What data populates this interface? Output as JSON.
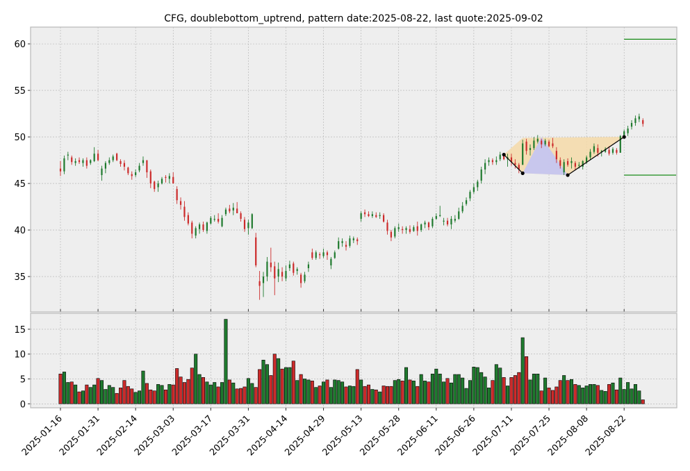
{
  "chart_data": {
    "type": "candlestick",
    "title": "CFG, doublebottom_uptrend, pattern date:2025-08-22, last quote:2025-09-02",
    "price_axis": {
      "ylim": [
        31.2,
        61.8
      ],
      "ticks": [
        35,
        40,
        45,
        50,
        55,
        60
      ]
    },
    "volume_axis": {
      "ylim": [
        -0.8,
        18.2
      ],
      "ticks": [
        0,
        5,
        10,
        15
      ]
    },
    "x_tick_labels": [
      "2025-01-16",
      "2025-01-31",
      "2025-02-14",
      "2025-03-03",
      "2025-03-17",
      "2025-03-31",
      "2025-04-14",
      "2025-04-29",
      "2025-05-13",
      "2025-05-28",
      "2025-06-11",
      "2025-06-26",
      "2025-07-11",
      "2025-07-25",
      "2025-08-08",
      "2025-08-22"
    ],
    "x_tick_index": [
      0,
      10,
      20,
      30,
      40,
      50,
      60,
      70,
      80,
      90,
      100,
      110,
      120,
      130,
      140,
      150
    ],
    "grid": true,
    "levels": [
      60.5,
      45.9
    ],
    "pattern_points": [
      {
        "i": 118,
        "price": 48.1
      },
      {
        "i": 123,
        "price": 46.1
      },
      {
        "i": 135,
        "price": 45.9
      },
      {
        "i": 150,
        "price": 50.0
      }
    ],
    "candles": [
      [
        46.6,
        47.4,
        45.8,
        46.3,
        6.0
      ],
      [
        46.3,
        48.0,
        46.0,
        47.7,
        6.4
      ],
      [
        48.0,
        48.4,
        47.5,
        48.1,
        4.3
      ],
      [
        47.8,
        48.0,
        47.0,
        47.3,
        4.4
      ],
      [
        47.2,
        47.7,
        46.9,
        47.4,
        3.8
      ],
      [
        47.5,
        47.8,
        47.1,
        47.3,
        2.4
      ],
      [
        47.2,
        47.7,
        46.8,
        47.5,
        2.6
      ],
      [
        47.5,
        47.8,
        46.6,
        46.9,
        3.8
      ],
      [
        47.2,
        47.6,
        47.0,
        47.5,
        3.3
      ],
      [
        47.4,
        48.9,
        47.3,
        48.2,
        3.8
      ],
      [
        48.2,
        48.6,
        47.4,
        47.5,
        5.1
      ],
      [
        45.9,
        46.9,
        45.3,
        46.6,
        4.7
      ],
      [
        46.6,
        47.4,
        46.1,
        47.2,
        2.9
      ],
      [
        47.2,
        47.8,
        47.0,
        47.5,
        3.7
      ],
      [
        47.5,
        48.1,
        47.3,
        47.9,
        3.3
      ],
      [
        48.2,
        48.3,
        47.4,
        47.5,
        2.1
      ],
      [
        47.4,
        47.6,
        46.8,
        47.1,
        3.2
      ],
      [
        47.2,
        47.5,
        46.4,
        46.8,
        4.7
      ],
      [
        46.7,
        46.8,
        45.9,
        46.1,
        3.5
      ],
      [
        46.0,
        46.3,
        45.4,
        45.8,
        3.0
      ],
      [
        45.9,
        46.5,
        45.7,
        46.2,
        2.3
      ],
      [
        46.4,
        47.2,
        46.2,
        46.9,
        2.6
      ],
      [
        47.2,
        47.9,
        46.9,
        47.5,
        6.6
      ],
      [
        47.5,
        47.5,
        45.6,
        46.2,
        4.1
      ],
      [
        46.3,
        46.5,
        44.5,
        45.0,
        2.8
      ],
      [
        45.2,
        45.3,
        44.1,
        44.4,
        2.6
      ],
      [
        44.6,
        45.3,
        44.1,
        45.0,
        3.9
      ],
      [
        45.0,
        45.7,
        44.9,
        45.5,
        3.7
      ],
      [
        45.7,
        45.9,
        45.1,
        45.6,
        2.8
      ],
      [
        45.5,
        46.1,
        45.0,
        45.8,
        3.9
      ],
      [
        45.7,
        46.2,
        45.0,
        45.0,
        3.8
      ],
      [
        44.4,
        44.7,
        42.8,
        43.2,
        7.1
      ],
      [
        43.1,
        43.5,
        42.2,
        42.7,
        5.4
      ],
      [
        42.5,
        43.1,
        41.0,
        41.4,
        4.3
      ],
      [
        41.6,
        41.9,
        40.5,
        40.7,
        4.9
      ],
      [
        40.8,
        41.0,
        39.1,
        39.6,
        7.2
      ],
      [
        39.4,
        40.4,
        39.1,
        40.2,
        10.0
      ],
      [
        40.1,
        40.8,
        39.6,
        40.6,
        5.9
      ],
      [
        40.6,
        40.9,
        39.8,
        40.0,
        5.3
      ],
      [
        39.9,
        40.9,
        39.6,
        40.8,
        4.4
      ],
      [
        40.7,
        41.5,
        40.6,
        41.3,
        3.8
      ],
      [
        41.1,
        41.6,
        40.9,
        41.2,
        4.3
      ],
      [
        41.2,
        41.8,
        40.7,
        40.9,
        3.4
      ],
      [
        40.4,
        41.6,
        40.3,
        41.3,
        4.3
      ],
      [
        41.7,
        42.4,
        41.5,
        42.2,
        17.0
      ],
      [
        42.3,
        42.7,
        41.8,
        42.0,
        4.8
      ],
      [
        42.1,
        42.9,
        41.6,
        42.4,
        4.2
      ],
      [
        42.3,
        43.0,
        41.8,
        41.8,
        3.0
      ],
      [
        41.8,
        42.0,
        40.9,
        41.2,
        3.1
      ],
      [
        41.1,
        41.4,
        39.8,
        40.1,
        3.4
      ],
      [
        40.2,
        41.1,
        39.5,
        40.8,
        5.1
      ],
      [
        40.2,
        41.8,
        40.1,
        41.7,
        4.1
      ],
      [
        39.2,
        39.7,
        36.0,
        36.2,
        3.3
      ],
      [
        34.5,
        35.6,
        32.5,
        34.0,
        6.9
      ],
      [
        34.3,
        35.5,
        32.8,
        35.0,
        8.8
      ],
      [
        35.0,
        37.1,
        34.5,
        36.6,
        7.9
      ],
      [
        36.5,
        38.1,
        35.5,
        36.0,
        5.7
      ],
      [
        36.1,
        36.6,
        33.0,
        34.8,
        10.0
      ],
      [
        35.0,
        36.5,
        34.4,
        35.8,
        9.1
      ],
      [
        35.5,
        36.0,
        34.5,
        35.0,
        7.0
      ],
      [
        34.8,
        36.2,
        34.5,
        35.6,
        7.3
      ],
      [
        35.9,
        36.7,
        35.6,
        36.3,
        7.3
      ],
      [
        36.4,
        36.6,
        35.1,
        35.4,
        8.6
      ],
      [
        35.6,
        36.0,
        35.2,
        35.8,
        4.7
      ],
      [
        35.2,
        35.4,
        33.8,
        34.3,
        5.9
      ],
      [
        34.5,
        35.5,
        34.3,
        35.2,
        5.0
      ],
      [
        35.9,
        36.6,
        35.5,
        36.3,
        4.8
      ],
      [
        37.6,
        38.0,
        36.8,
        37.0,
        4.6
      ],
      [
        37.0,
        37.8,
        36.8,
        37.6,
        3.3
      ],
      [
        37.4,
        37.6,
        36.9,
        37.3,
        3.6
      ],
      [
        37.2,
        38.0,
        37.0,
        37.6,
        4.4
      ],
      [
        37.6,
        37.8,
        36.8,
        37.3,
        4.8
      ],
      [
        36.2,
        37.1,
        35.8,
        36.9,
        3.3
      ],
      [
        37.0,
        37.8,
        36.9,
        37.6,
        4.8
      ],
      [
        38.0,
        39.2,
        37.9,
        38.8,
        4.7
      ],
      [
        38.6,
        39.1,
        38.2,
        38.8,
        4.4
      ],
      [
        38.4,
        38.8,
        37.8,
        38.2,
        3.4
      ],
      [
        38.3,
        39.4,
        38.1,
        39.1,
        3.6
      ],
      [
        38.9,
        39.3,
        38.6,
        39.1,
        3.5
      ],
      [
        39.0,
        39.2,
        38.4,
        38.8,
        6.9
      ],
      [
        41.2,
        42.0,
        40.9,
        41.8,
        4.8
      ],
      [
        41.9,
        42.2,
        41.4,
        41.7,
        3.5
      ],
      [
        41.7,
        42.0,
        41.4,
        41.5,
        3.8
      ],
      [
        41.5,
        42.0,
        41.3,
        41.7,
        2.9
      ],
      [
        41.6,
        41.9,
        41.3,
        41.4,
        2.8
      ],
      [
        41.5,
        41.9,
        41.2,
        41.6,
        2.4
      ],
      [
        41.6,
        41.8,
        40.8,
        40.9,
        3.6
      ],
      [
        40.8,
        41.1,
        39.5,
        39.9,
        3.5
      ],
      [
        39.8,
        40.0,
        38.8,
        39.2,
        3.5
      ],
      [
        39.3,
        40.4,
        39.1,
        40.2,
        4.7
      ],
      [
        40.1,
        40.7,
        39.8,
        40.3,
        4.9
      ],
      [
        40.1,
        40.4,
        39.6,
        40.0,
        4.6
      ],
      [
        40.0,
        40.4,
        39.6,
        40.2,
        7.3
      ],
      [
        40.1,
        40.5,
        39.6,
        39.8,
        4.8
      ],
      [
        39.9,
        40.5,
        39.8,
        40.3,
        4.6
      ],
      [
        40.4,
        40.9,
        39.4,
        39.9,
        3.5
      ],
      [
        40.0,
        40.7,
        39.8,
        40.6,
        5.9
      ],
      [
        40.6,
        41.0,
        40.2,
        40.8,
        4.6
      ],
      [
        40.8,
        40.9,
        40.0,
        40.3,
        4.4
      ],
      [
        40.4,
        41.4,
        40.2,
        41.2,
        6.0
      ],
      [
        41.2,
        41.8,
        41.1,
        41.5,
        7.0
      ],
      [
        41.5,
        42.6,
        41.4,
        41.6,
        6.0
      ],
      [
        40.9,
        41.3,
        40.5,
        41.0,
        4.4
      ],
      [
        41.0,
        41.3,
        40.4,
        40.6,
        5.1
      ],
      [
        40.6,
        41.5,
        40.1,
        41.2,
        4.2
      ],
      [
        41.0,
        41.6,
        40.8,
        41.2,
        5.9
      ],
      [
        41.2,
        42.4,
        41.1,
        42.0,
        5.9
      ],
      [
        42.0,
        43.0,
        41.8,
        42.6,
        5.2
      ],
      [
        42.8,
        43.5,
        42.6,
        43.2,
        3.1
      ],
      [
        43.4,
        44.3,
        43.1,
        44.1,
        4.7
      ],
      [
        44.1,
        45.0,
        43.9,
        44.6,
        7.4
      ],
      [
        44.6,
        45.4,
        44.2,
        45.2,
        7.3
      ],
      [
        45.3,
        46.8,
        45.0,
        46.5,
        6.3
      ],
      [
        46.5,
        47.6,
        46.0,
        47.2,
        5.4
      ],
      [
        47.3,
        47.8,
        46.9,
        47.5,
        3.2
      ],
      [
        47.5,
        47.7,
        47.0,
        47.3,
        4.7
      ],
      [
        47.3,
        47.9,
        47.0,
        47.5,
        7.9
      ],
      [
        47.6,
        48.4,
        47.4,
        48.1,
        7.2
      ],
      [
        48.0,
        48.1,
        47.5,
        47.6,
        5.3
      ],
      [
        47.6,
        48.2,
        46.8,
        47.8,
        3.6
      ],
      [
        47.8,
        48.2,
        46.9,
        47.3,
        5.3
      ],
      [
        47.2,
        47.6,
        46.6,
        47.0,
        5.7
      ],
      [
        47.0,
        47.2,
        46.1,
        46.5,
        6.3
      ],
      [
        47.0,
        49.7,
        47.0,
        49.3,
        13.3
      ],
      [
        49.5,
        49.8,
        48.1,
        48.5,
        9.5
      ],
      [
        48.6,
        49.2,
        48.0,
        48.8,
        4.8
      ],
      [
        48.8,
        50.0,
        48.6,
        49.6,
        6.0
      ],
      [
        49.5,
        50.2,
        49.3,
        49.8,
        6.0
      ],
      [
        49.6,
        49.8,
        48.8,
        49.2,
        2.6
      ],
      [
        49.2,
        49.8,
        49.0,
        49.6,
        5.2
      ],
      [
        49.5,
        49.7,
        48.9,
        49.0,
        3.2
      ],
      [
        49.3,
        49.9,
        48.8,
        49.0,
        2.7
      ],
      [
        48.5,
        48.9,
        47.2,
        47.6,
        3.4
      ],
      [
        47.5,
        47.8,
        46.6,
        46.9,
        4.7
      ],
      [
        46.2,
        47.6,
        45.9,
        47.3,
        5.7
      ],
      [
        47.4,
        47.7,
        46.8,
        47.0,
        4.7
      ],
      [
        47.2,
        47.8,
        46.6,
        47.4,
        4.9
      ],
      [
        47.2,
        47.4,
        46.4,
        46.8,
        3.9
      ],
      [
        46.9,
        47.3,
        46.6,
        47.0,
        3.7
      ],
      [
        46.8,
        47.5,
        46.5,
        47.4,
        3.2
      ],
      [
        47.3,
        48.0,
        47.1,
        47.8,
        3.6
      ],
      [
        47.8,
        48.7,
        47.5,
        48.4,
        3.9
      ],
      [
        48.4,
        49.3,
        48.2,
        49.0,
        3.9
      ],
      [
        48.8,
        49.2,
        47.9,
        48.3,
        3.7
      ],
      [
        48.4,
        48.6,
        47.9,
        48.5,
        2.7
      ],
      [
        48.4,
        48.9,
        48.3,
        48.7,
        2.5
      ],
      [
        48.6,
        49.0,
        48.0,
        48.2,
        3.9
      ],
      [
        48.3,
        48.9,
        48.1,
        48.7,
        4.2
      ],
      [
        48.6,
        48.8,
        48.1,
        48.3,
        2.8
      ],
      [
        48.3,
        50.2,
        48.3,
        50.1,
        5.2
      ],
      [
        50.2,
        50.8,
        50.0,
        50.6,
        2.9
      ],
      [
        50.4,
        51.2,
        50.1,
        50.9,
        4.3
      ],
      [
        51.1,
        51.8,
        50.8,
        51.5,
        3.0
      ],
      [
        51.5,
        52.3,
        51.2,
        52.0,
        3.9
      ],
      [
        51.9,
        52.5,
        51.6,
        52.2,
        2.6
      ],
      [
        51.8,
        52.0,
        51.1,
        51.4,
        0.8
      ]
    ]
  },
  "colors": {
    "up": "#1f7a2e",
    "down": "#cc2b2b",
    "plot_bg": "#eeeeee",
    "axis_border": "#bcbcbc",
    "grid": "#b0b0b0",
    "level_line": "#008000",
    "pattern_fill_outer": "#f5d9a8",
    "pattern_fill_inner": "#c5c5f0"
  }
}
